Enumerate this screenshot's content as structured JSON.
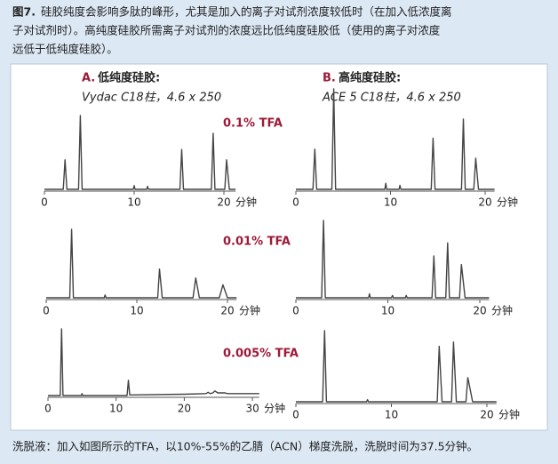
{
  "caption": {
    "label": "图7.",
    "lines": [
      "硅胶纯度会影响多肽的峰形，尤其是加入的离子对试剂浓度较低时（在加入低浓度离",
      "子对试剂时）。高纯度硅胶所需离子对试剂的浓度远比低纯度硅胶低（使用的离子对浓度",
      "远低于低纯度硅胶）。"
    ]
  },
  "panels": [
    {
      "letter": "A.",
      "title": "低纯度硅胶:",
      "column": "Vydac C18柱，4.6 x 250"
    },
    {
      "letter": "B.",
      "title": "高纯度硅胶:",
      "column": "ACE 5 C18柱，4.6 x 250"
    }
  ],
  "conditions": [
    "0.1% TFA",
    "0.01% TFA",
    "0.005% TFA"
  ],
  "footer": "洗脱液：加入如图所示的TFA，以10%-55%的乙腈（ACN）梯度洗脱，洗脱时间为37.5分钟。",
  "chart_data": [
    {
      "type": "line",
      "x_label": "分钟",
      "xlim": [
        0,
        21.3
      ],
      "xticks": [
        0,
        10,
        20
      ],
      "color": "#444444",
      "x": [
        0,
        2.1,
        2.3,
        2.5,
        3.8,
        4,
        4.2,
        9.9,
        10,
        10.1,
        11.4,
        11.5,
        11.6,
        15.1,
        15.3,
        15.5,
        18.6,
        18.8,
        19.0,
        20.1,
        20.3,
        20.6,
        21.3
      ],
      "values": [
        0,
        0,
        40,
        0,
        0,
        100,
        0,
        0,
        5,
        0,
        0,
        4,
        0,
        0,
        54,
        0,
        0,
        76,
        0,
        0,
        40,
        0,
        0
      ]
    },
    {
      "type": "line",
      "x_label": "分钟",
      "xlim": [
        0,
        21
      ],
      "xticks": [
        0,
        10,
        20
      ],
      "color": "#444444",
      "x": [
        0,
        1.8,
        2,
        2.2,
        3.8,
        4,
        4.2,
        9.4,
        9.5,
        9.6,
        10.9,
        11,
        11.1,
        14.3,
        14.5,
        14.7,
        17.5,
        17.7,
        17.9,
        18.8,
        19,
        19.3,
        21
      ],
      "values": [
        0,
        0,
        40,
        0,
        0,
        100,
        0,
        0,
        6,
        0,
        0,
        4,
        0,
        0,
        51,
        0,
        0,
        70,
        0,
        0,
        31,
        0,
        0
      ]
    },
    {
      "type": "line",
      "x_label": "分钟",
      "xlim": [
        0,
        21
      ],
      "xticks": [
        0,
        10,
        20
      ],
      "color": "#444444",
      "x": [
        0,
        2.6,
        2.8,
        3,
        6.4,
        6.5,
        6.6,
        12.3,
        12.5,
        12.8,
        16.2,
        16.5,
        16.9,
        19.1,
        19.5,
        20,
        21
      ],
      "values": [
        0,
        0,
        100,
        0,
        0,
        4,
        0,
        0,
        42,
        0,
        0,
        29,
        0,
        0,
        19,
        0,
        0
      ]
    },
    {
      "type": "line",
      "x_label": "分钟",
      "xlim": [
        0,
        21
      ],
      "xticks": [
        0,
        10,
        20
      ],
      "color": "#444444",
      "x": [
        0,
        2.8,
        3,
        3.2,
        7.9,
        8,
        8.1,
        10.4,
        10.5,
        10.6,
        11.9,
        12,
        12.1,
        14.8,
        15,
        15.2,
        16.3,
        16.5,
        16.7,
        17.8,
        18,
        18.4,
        21
      ],
      "values": [
        0,
        0,
        100,
        0,
        0,
        5,
        0,
        0,
        3,
        0,
        0,
        3,
        0,
        0,
        54,
        0,
        0,
        71,
        0,
        0,
        43,
        0,
        0
      ]
    },
    {
      "type": "line",
      "x_label": "分钟",
      "xlim": [
        0,
        31
      ],
      "xticks": [
        0,
        10,
        20,
        30
      ],
      "color": "#444444",
      "x": [
        0,
        1.8,
        2,
        2.2,
        4.9,
        5,
        5.1,
        11.6,
        11.8,
        12,
        20,
        23.2,
        23.5,
        23.8,
        24.2,
        24.5,
        24.9,
        25.8,
        26,
        26.3,
        31
      ],
      "values": [
        0,
        0,
        100,
        0,
        0,
        3,
        0,
        0,
        23,
        1,
        2,
        3,
        5,
        3,
        4,
        7,
        4,
        4,
        4,
        3,
        3
      ]
    },
    {
      "type": "line",
      "x_label": "分钟",
      "xlim": [
        0,
        21
      ],
      "xticks": [
        0,
        10,
        20
      ],
      "color": "#444444",
      "x": [
        0,
        2.8,
        3,
        3.2,
        7.4,
        7.5,
        7.6,
        14.8,
        15,
        15.3,
        16.3,
        16.5,
        16.8,
        17.8,
        18,
        18.5,
        21
      ],
      "values": [
        0,
        0,
        100,
        0,
        0,
        3,
        0,
        0,
        78,
        0,
        0,
        84,
        0,
        0,
        34,
        0,
        0
      ]
    }
  ]
}
